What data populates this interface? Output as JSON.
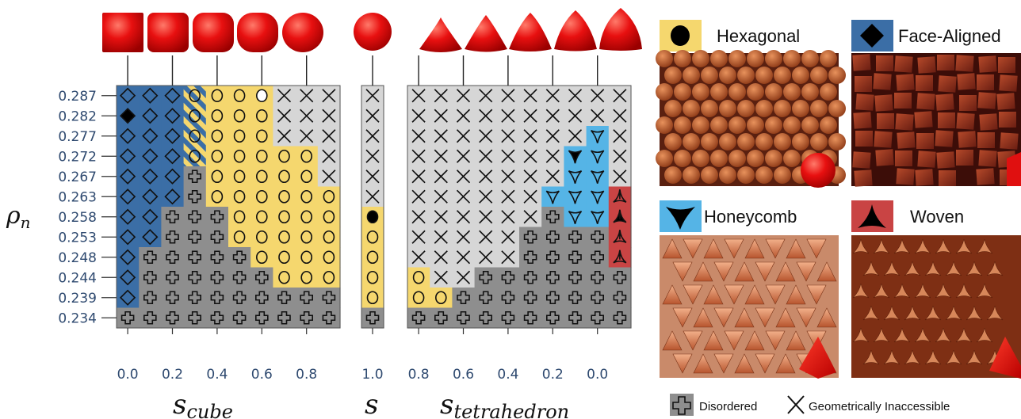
{
  "chart_data": {
    "type": "heatmap",
    "ylabel": "ρ_n",
    "y": [
      "0.287",
      "0.282",
      "0.277",
      "0.272",
      "0.267",
      "0.263",
      "0.258",
      "0.253",
      "0.248",
      "0.244",
      "0.239",
      "0.234"
    ],
    "panels": [
      {
        "xlabel": "s_cube",
        "xticks": [
          "0.0",
          "0.2",
          "0.4",
          "0.6",
          "0.8"
        ],
        "x": [
          0.0,
          0.1,
          0.2,
          0.3,
          0.4,
          0.5,
          0.6,
          0.7,
          0.8,
          0.9
        ],
        "rows": [
          [
            "F",
            "F",
            "F",
            "HS",
            "H",
            "H",
            "Hw",
            "X",
            "X",
            "X"
          ],
          [
            "Fs",
            "F",
            "F",
            "HS",
            "H",
            "H",
            "H",
            "X",
            "X",
            "X"
          ],
          [
            "F",
            "F",
            "F",
            "HS",
            "H",
            "H",
            "H",
            "X",
            "X",
            "X"
          ],
          [
            "F",
            "F",
            "F",
            "HS",
            "H",
            "H",
            "H",
            "H",
            "H",
            "X"
          ],
          [
            "F",
            "F",
            "F",
            "D",
            "H",
            "H",
            "H",
            "H",
            "H",
            "X"
          ],
          [
            "F",
            "F",
            "F",
            "D",
            "H",
            "H",
            "H",
            "H",
            "H",
            "H"
          ],
          [
            "F",
            "F",
            "D",
            "D",
            "D",
            "H",
            "H",
            "H",
            "H",
            "H"
          ],
          [
            "F",
            "F",
            "D",
            "D",
            "D",
            "H",
            "H",
            "H",
            "H",
            "H"
          ],
          [
            "F",
            "D",
            "D",
            "D",
            "D",
            "D",
            "H",
            "H",
            "H",
            "H"
          ],
          [
            "F",
            "D",
            "D",
            "D",
            "D",
            "D",
            "D",
            "H",
            "H",
            "H"
          ],
          [
            "F",
            "D",
            "D",
            "D",
            "D",
            "D",
            "D",
            "D",
            "D",
            "D"
          ],
          [
            "D",
            "D",
            "D",
            "D",
            "D",
            "D",
            "D",
            "D",
            "D",
            "D"
          ]
        ]
      },
      {
        "xlabel": "s",
        "xticks": [
          "1.0"
        ],
        "x": [
          1.0
        ],
        "rows": [
          [
            "X"
          ],
          [
            "X"
          ],
          [
            "X"
          ],
          [
            "X"
          ],
          [
            "X"
          ],
          [
            "X"
          ],
          [
            "Hs"
          ],
          [
            "H"
          ],
          [
            "H"
          ],
          [
            "H"
          ],
          [
            "H"
          ],
          [
            "D"
          ]
        ]
      },
      {
        "xlabel": "s_tetrahedron",
        "xticks": [
          "0.8",
          "0.6",
          "0.4",
          "0.2",
          "0.0"
        ],
        "x": [
          0.9,
          0.8,
          0.7,
          0.6,
          0.5,
          0.4,
          0.3,
          0.2,
          0.1,
          0.0
        ],
        "rows": [
          [
            "X",
            "X",
            "X",
            "X",
            "X",
            "X",
            "X",
            "X",
            "X",
            "X"
          ],
          [
            "X",
            "X",
            "X",
            "X",
            "X",
            "X",
            "X",
            "X",
            "X",
            "X"
          ],
          [
            "X",
            "X",
            "X",
            "X",
            "X",
            "X",
            "X",
            "X",
            "C",
            "X"
          ],
          [
            "X",
            "X",
            "X",
            "X",
            "X",
            "X",
            "X",
            "Cs",
            "C",
            "X"
          ],
          [
            "X",
            "X",
            "X",
            "X",
            "X",
            "X",
            "X",
            "C",
            "C",
            "X"
          ],
          [
            "X",
            "X",
            "X",
            "X",
            "X",
            "X",
            "C",
            "C",
            "C",
            "W"
          ],
          [
            "X",
            "X",
            "X",
            "X",
            "X",
            "X",
            "D",
            "C",
            "C",
            "Ws"
          ],
          [
            "X",
            "X",
            "X",
            "X",
            "X",
            "D",
            "D",
            "D",
            "D",
            "W"
          ],
          [
            "X",
            "X",
            "X",
            "X",
            "X",
            "D",
            "D",
            "D",
            "D",
            "W"
          ],
          [
            "H",
            "X",
            "X",
            "D",
            "D",
            "D",
            "D",
            "D",
            "D",
            "D"
          ],
          [
            "H",
            "H",
            "D",
            "D",
            "D",
            "D",
            "D",
            "D",
            "D",
            "D"
          ],
          [
            "D",
            "D",
            "D",
            "D",
            "D",
            "D",
            "D",
            "D",
            "D",
            "D"
          ]
        ]
      }
    ],
    "phases": [
      {
        "code": "H",
        "name": "Hexagonal",
        "color": "#f5d76e"
      },
      {
        "code": "F",
        "name": "Face-Aligned",
        "color": "#3b6ea6"
      },
      {
        "code": "C",
        "name": "Honeycomb",
        "color": "#55b4e6"
      },
      {
        "code": "W",
        "name": "Woven",
        "color": "#c94444"
      },
      {
        "code": "D",
        "name": "Disordered",
        "color": "#8e8e8e"
      },
      {
        "code": "X",
        "name": "Geometrically Inaccessible",
        "color": "#d6d6d6"
      }
    ]
  },
  "legend": {
    "hexagonal": "Hexagonal",
    "face_aligned": "Face-Aligned",
    "honeycomb": "Honeycomb",
    "woven": "Woven",
    "disordered": "Disordered",
    "inaccessible": "Geometrically Inaccessible"
  },
  "colors": {
    "hexagonal": "#f5d76e",
    "face_aligned": "#3b6ea6",
    "honeycomb": "#55b4e6",
    "woven": "#c94444",
    "disordered": "#8e8e8e",
    "inaccessible": "#d6d6d6",
    "shape_red": "#e01010",
    "axis_text": "#2f4a70"
  }
}
